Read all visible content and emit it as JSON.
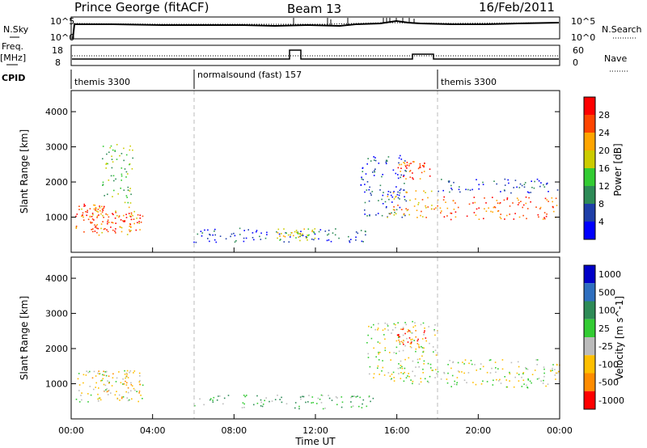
{
  "header": {
    "station": "Prince George (fitACF)",
    "beam": "Beam 13",
    "date": "16/Feb/2011"
  },
  "noise_panel": {
    "left_label": "N.Sky",
    "right_label": "N.Search",
    "left_ticks": [
      "10^5",
      "10^0"
    ],
    "right_ticks": [
      "10^5",
      "10^0"
    ]
  },
  "freq_panel": {
    "left_label_line1": "Freq.",
    "left_label_line2": "[MHz]",
    "right_label": "Nave",
    "left_ticks": [
      "18",
      "8"
    ],
    "right_ticks": [
      "60",
      "0"
    ]
  },
  "cpid": {
    "label": "CPID",
    "segments": [
      {
        "name": "themis 3300",
        "start_hour": 0,
        "end_hour": 6
      },
      {
        "name": "normalsound (fast) 157",
        "start_hour": 6,
        "end_hour": 18
      },
      {
        "name": "themis 3300",
        "start_hour": 18,
        "end_hour": 24
      }
    ]
  },
  "colors": {
    "power_scale": [
      "#0000ff",
      "#1f3fa8",
      "#2e8b57",
      "#33cc33",
      "#cccc00",
      "#ffa500",
      "#ff4500",
      "#ff0000"
    ],
    "velocity_scale": [
      "#0000c8",
      "#2f6fbf",
      "#2e8b57",
      "#33cc33",
      "#bbbbbb",
      "#ffbf00",
      "#ff8c00",
      "#ff0000"
    ]
  },
  "chart_data": [
    {
      "type": "heatmap",
      "quantity": "Power",
      "title": "",
      "xlabel": "Time UT",
      "ylabel": "Slant Range [km]",
      "colorbar_label": "Power [dB]",
      "colorbar_ticks": [
        "4",
        "8",
        "12",
        "16",
        "20",
        "24",
        "28"
      ],
      "xlim_hours": [
        0,
        24
      ],
      "ylim_km": [
        0,
        4600
      ],
      "yticks": [
        "1000",
        "2000",
        "3000",
        "4000"
      ],
      "xticks": [
        "00:00",
        "04:00",
        "08:00",
        "12:00",
        "16:00",
        "20:00",
        "00:00"
      ],
      "regions": [
        {
          "t0": 0.2,
          "t1": 3.5,
          "r0": 500,
          "r1": 1300,
          "level": 5
        },
        {
          "t0": 0.2,
          "t1": 1.6,
          "r0": 1000,
          "r1": 1400,
          "level": 6
        },
        {
          "t0": 1.0,
          "t1": 3.4,
          "r0": 600,
          "r1": 1200,
          "level": 7
        },
        {
          "t0": 1.5,
          "t1": 3.0,
          "r0": 1400,
          "r1": 3100,
          "level": 3
        },
        {
          "t0": 6.0,
          "t1": 15.0,
          "r0": 300,
          "r1": 700,
          "level": 1
        },
        {
          "t0": 10.0,
          "t1": 12.0,
          "r0": 350,
          "r1": 700,
          "level": 4
        },
        {
          "t0": 14.2,
          "t1": 16.5,
          "r0": 1000,
          "r1": 2800,
          "level": 1
        },
        {
          "t0": 16.0,
          "t1": 17.6,
          "r0": 2100,
          "r1": 2600,
          "level": 6
        },
        {
          "t0": 15.5,
          "t1": 18.0,
          "r0": 1000,
          "r1": 1800,
          "level": 5
        },
        {
          "t0": 18.0,
          "t1": 24.0,
          "r0": 950,
          "r1": 1600,
          "level": 6
        },
        {
          "t0": 18.0,
          "t1": 24.0,
          "r0": 1700,
          "r1": 2100,
          "level": 1
        }
      ]
    },
    {
      "type": "heatmap",
      "quantity": "Velocity",
      "title": "",
      "xlabel": "Time UT",
      "ylabel": "Slant Range [km]",
      "colorbar_label": "Velocity [m s^-1]",
      "colorbar_ticks": [
        "1000",
        "500",
        "100",
        "25",
        "-25",
        "-100",
        "-500",
        "-1000"
      ],
      "xlim_hours": [
        0,
        24
      ],
      "ylim_km": [
        0,
        4600
      ],
      "yticks": [
        "1000",
        "2000",
        "3000",
        "4000"
      ],
      "xticks": [
        "00:00",
        "04:00",
        "08:00",
        "12:00",
        "16:00",
        "20:00",
        "00:00"
      ],
      "regions": [
        {
          "t0": 0.2,
          "t1": 3.5,
          "r0": 500,
          "r1": 1400,
          "level": 4
        },
        {
          "t0": 1.0,
          "t1": 3.4,
          "r0": 600,
          "r1": 1400,
          "level": 5
        },
        {
          "t0": 6.0,
          "t1": 15.0,
          "r0": 300,
          "r1": 700,
          "level": 3
        },
        {
          "t0": 14.5,
          "t1": 18.0,
          "r0": 1000,
          "r1": 2800,
          "level": 4
        },
        {
          "t0": 16.0,
          "t1": 17.5,
          "r0": 2000,
          "r1": 2600,
          "level": 6
        },
        {
          "t0": 18.0,
          "t1": 24.0,
          "r0": 900,
          "r1": 1700,
          "level": 4
        }
      ]
    }
  ]
}
